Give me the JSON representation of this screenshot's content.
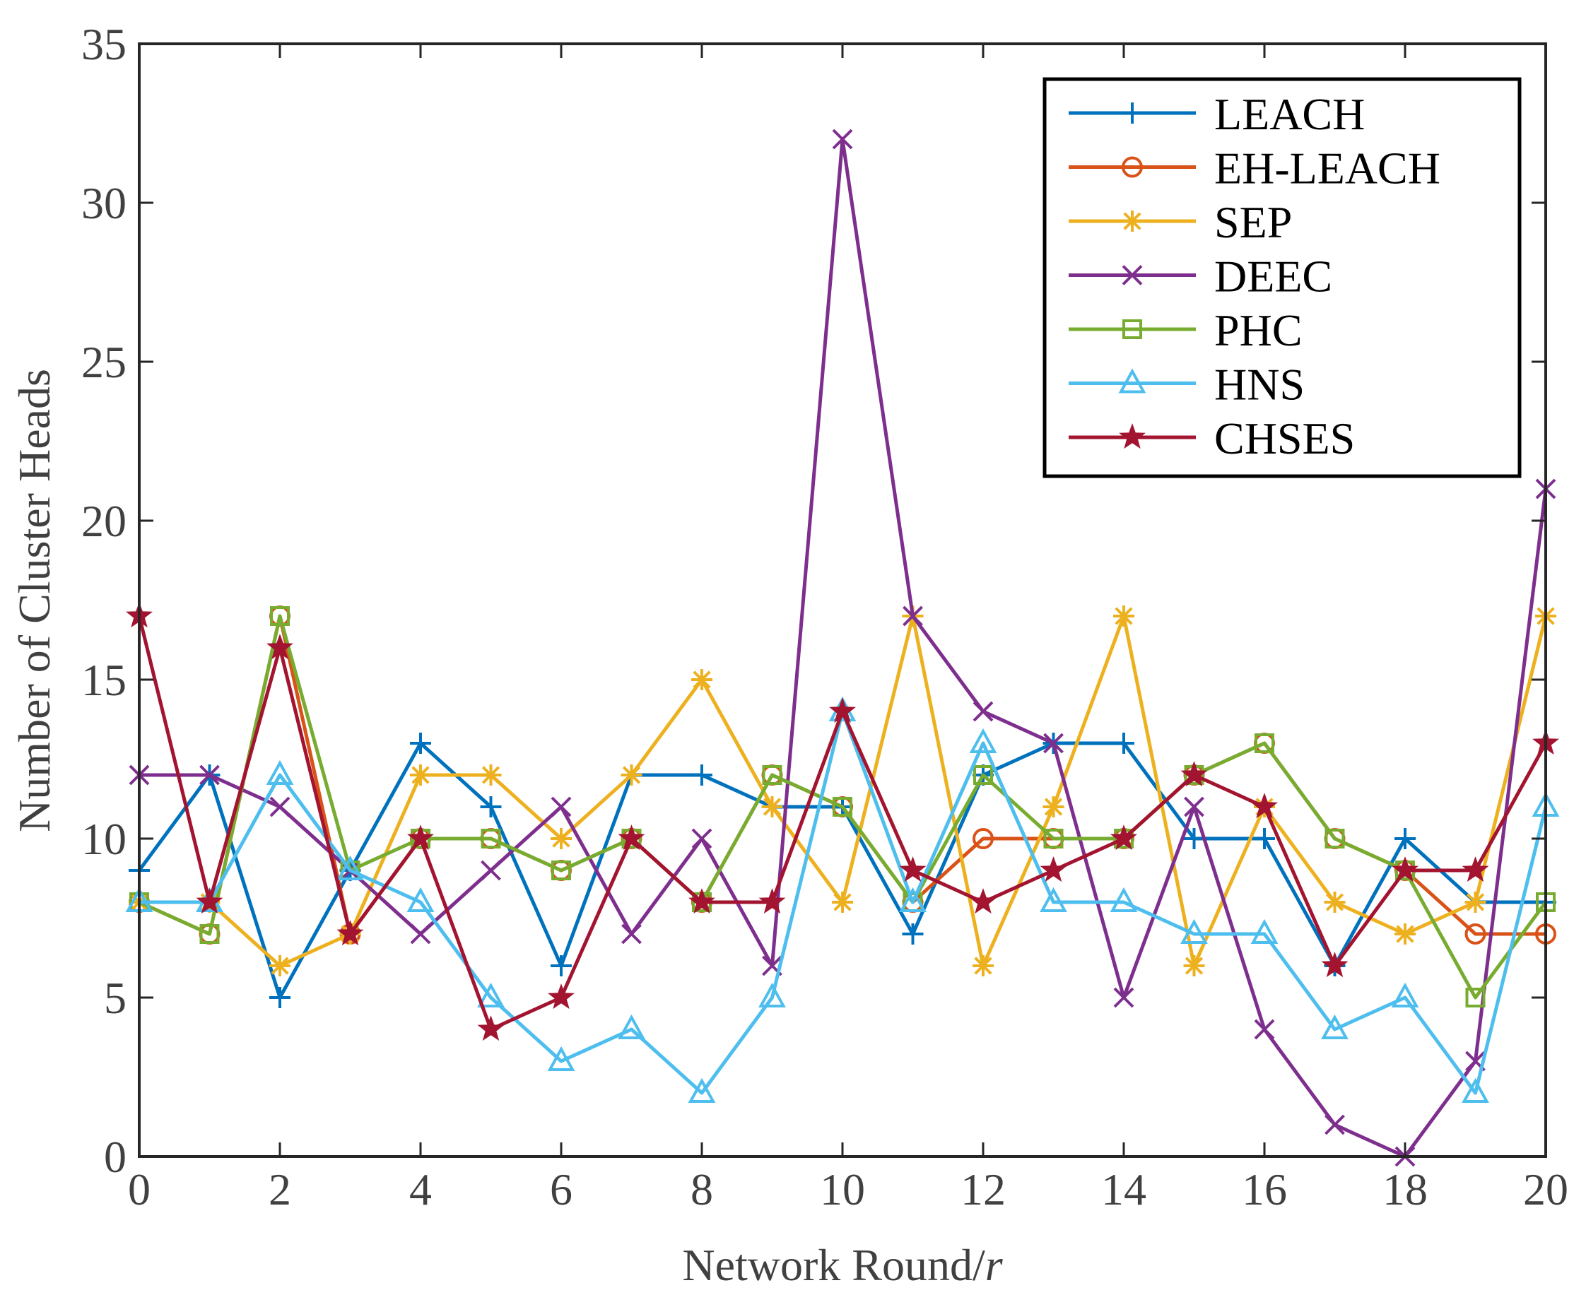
{
  "chart_data": {
    "type": "line",
    "xlabel": "Network Round/",
    "xlabel_italic": "r",
    "ylabel": "Number of Cluster Heads",
    "xlim": [
      0,
      20
    ],
    "ylim": [
      0,
      35
    ],
    "xticks": [
      0,
      2,
      4,
      6,
      8,
      10,
      12,
      14,
      16,
      18,
      20
    ],
    "yticks": [
      0,
      5,
      10,
      15,
      20,
      25,
      30,
      35
    ],
    "grid": false,
    "legend_position": "top-right",
    "x": [
      0,
      1,
      2,
      3,
      4,
      5,
      6,
      7,
      8,
      9,
      10,
      11,
      12,
      13,
      14,
      15,
      16,
      17,
      18,
      19,
      20
    ],
    "series": [
      {
        "name": "LEACH",
        "color": "#0072BD",
        "marker": "plus",
        "values": [
          9,
          12,
          5,
          9,
          13,
          11,
          6,
          12,
          12,
          11,
          11,
          7,
          12,
          13,
          13,
          10,
          10,
          6,
          10,
          8,
          8
        ]
      },
      {
        "name": "EH-LEACH",
        "color": "#D95319",
        "marker": "circle",
        "values": [
          8,
          7,
          17,
          7,
          10,
          10,
          9,
          10,
          8,
          12,
          11,
          8,
          10,
          10,
          10,
          12,
          13,
          10,
          9,
          7,
          7
        ]
      },
      {
        "name": "SEP",
        "color": "#EDB120",
        "marker": "asterisk",
        "values": [
          8,
          8,
          6,
          7,
          12,
          12,
          10,
          12,
          15,
          11,
          8,
          17,
          6,
          11,
          17,
          6,
          11,
          8,
          7,
          8,
          17
        ]
      },
      {
        "name": "DEEC",
        "color": "#7E2F8E",
        "marker": "x",
        "values": [
          12,
          12,
          11,
          9,
          7,
          9,
          11,
          7,
          10,
          6,
          32,
          17,
          14,
          13,
          5,
          11,
          4,
          1,
          0,
          3,
          21
        ]
      },
      {
        "name": "PHC",
        "color": "#77AC30",
        "marker": "square",
        "values": [
          8,
          7,
          17,
          9,
          10,
          10,
          9,
          10,
          8,
          12,
          11,
          8,
          12,
          10,
          10,
          12,
          13,
          10,
          9,
          5,
          8
        ]
      },
      {
        "name": "HNS",
        "color": "#4DBEEE",
        "marker": "triangle",
        "values": [
          8,
          8,
          12,
          9,
          8,
          5,
          3,
          4,
          2,
          5,
          14,
          8,
          13,
          8,
          8,
          7,
          7,
          4,
          5,
          2,
          11
        ]
      },
      {
        "name": "CHSES",
        "color": "#A2142F",
        "marker": "star",
        "values": [
          17,
          8,
          16,
          7,
          10,
          4,
          5,
          10,
          8,
          8,
          14,
          9,
          8,
          9,
          10,
          12,
          11,
          6,
          9,
          9,
          13
        ]
      }
    ]
  }
}
